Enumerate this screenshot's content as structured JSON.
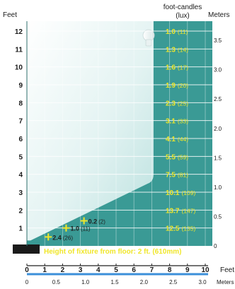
{
  "chart_data": {
    "type": "area",
    "title": "",
    "labels": {
      "left_unit": "Feet",
      "bottom_unit": "Feet",
      "right_header_line1": "foot-candles",
      "right_header_line2": "(lux)",
      "meters_header": "Meters",
      "meters_bottom_unit": "Meters",
      "fixture_note": "Height of fixture from floor: 2 ft. (610mm)"
    },
    "y_feet_ticks": [
      {
        "value": 1,
        "label": "1"
      },
      {
        "value": 2,
        "label": "2"
      },
      {
        "value": 3,
        "label": "3"
      },
      {
        "value": 4,
        "label": "4"
      },
      {
        "value": 5,
        "label": "5"
      },
      {
        "value": 6,
        "label": "6"
      },
      {
        "value": 7,
        "label": "7"
      },
      {
        "value": 8,
        "label": "8"
      },
      {
        "value": 9,
        "label": "9"
      },
      {
        "value": 10,
        "label": "10"
      },
      {
        "value": 11,
        "label": "11"
      },
      {
        "value": 12,
        "label": "12"
      }
    ],
    "y_meters_ticks": [
      {
        "value": 0,
        "label": "0"
      },
      {
        "value": 0.5,
        "label": "0.5"
      },
      {
        "value": 1.0,
        "label": "1.0"
      },
      {
        "value": 1.5,
        "label": "1.5"
      },
      {
        "value": 2.0,
        "label": "2.0"
      },
      {
        "value": 2.5,
        "label": "2.5"
      },
      {
        "value": 3.0,
        "label": "3.0"
      },
      {
        "value": 3.5,
        "label": "3.5"
      }
    ],
    "x_feet_ticks": [
      {
        "value": 0,
        "label": "0"
      },
      {
        "value": 1,
        "label": "1"
      },
      {
        "value": 2,
        "label": "2"
      },
      {
        "value": 3,
        "label": "3"
      },
      {
        "value": 4,
        "label": "4"
      },
      {
        "value": 5,
        "label": "5"
      },
      {
        "value": 6,
        "label": "6"
      },
      {
        "value": 7,
        "label": "7"
      },
      {
        "value": 8,
        "label": "8"
      },
      {
        "value": 9,
        "label": "9"
      },
      {
        "value": 10,
        "label": "10"
      }
    ],
    "x_meters_ticks": [
      {
        "value": 0,
        "label": "0"
      },
      {
        "value": 0.5,
        "label": "0.5"
      },
      {
        "value": 1.0,
        "label": "1.0"
      },
      {
        "value": 1.5,
        "label": "1.5"
      },
      {
        "value": 2.0,
        "label": "2.0"
      },
      {
        "value": 2.5,
        "label": "2.5"
      },
      {
        "value": 3.0,
        "label": "3.0"
      }
    ],
    "xlim_feet": [
      0,
      10
    ],
    "ylim_feet": [
      0,
      12
    ],
    "illuminance_by_height": [
      {
        "height_ft": 12,
        "fc": "1.0",
        "lux": "(11)"
      },
      {
        "height_ft": 11,
        "fc": "1.3",
        "lux": "(14)"
      },
      {
        "height_ft": 10,
        "fc": "1.6",
        "lux": "(17)"
      },
      {
        "height_ft": 9,
        "fc": "1.9",
        "lux": "(20)"
      },
      {
        "height_ft": 8,
        "fc": "2.3",
        "lux": "(25)"
      },
      {
        "height_ft": 7,
        "fc": "3.1",
        "lux": "(33)"
      },
      {
        "height_ft": 6,
        "fc": "4.1",
        "lux": "(44)"
      },
      {
        "height_ft": 5,
        "fc": "5.5",
        "lux": "(59)"
      },
      {
        "height_ft": 4,
        "fc": "7.5",
        "lux": "(81)"
      },
      {
        "height_ft": 3,
        "fc": "10.1",
        "lux": "(109)"
      },
      {
        "height_ft": 2,
        "fc": "13.7",
        "lux": "(147)"
      },
      {
        "height_ft": 1,
        "fc": "12.5",
        "lux": "(135)"
      }
    ],
    "floor_points": [
      {
        "x_ft": 3.2,
        "y_ft": 1.4,
        "fc": "0.2",
        "lux": "(2)"
      },
      {
        "x_ft": 2.2,
        "y_ft": 1.0,
        "fc": "1.0",
        "lux": "(11)"
      },
      {
        "x_ft": 1.2,
        "y_ft": 0.5,
        "fc": "2.4",
        "lux": "(26)"
      }
    ],
    "beam_edge": {
      "top_x_ft": 7.1,
      "knee_y_ft": 3.6,
      "bottom_x_ft": 0.2,
      "bottom_y_ft": 0.3
    },
    "grid": true
  },
  "colors": {
    "teal": "#3a9a95",
    "light": "#eaf6f5",
    "yellow": "#f0e62a",
    "blue": "#3b8fd9",
    "dark": "#1a1a1a"
  }
}
